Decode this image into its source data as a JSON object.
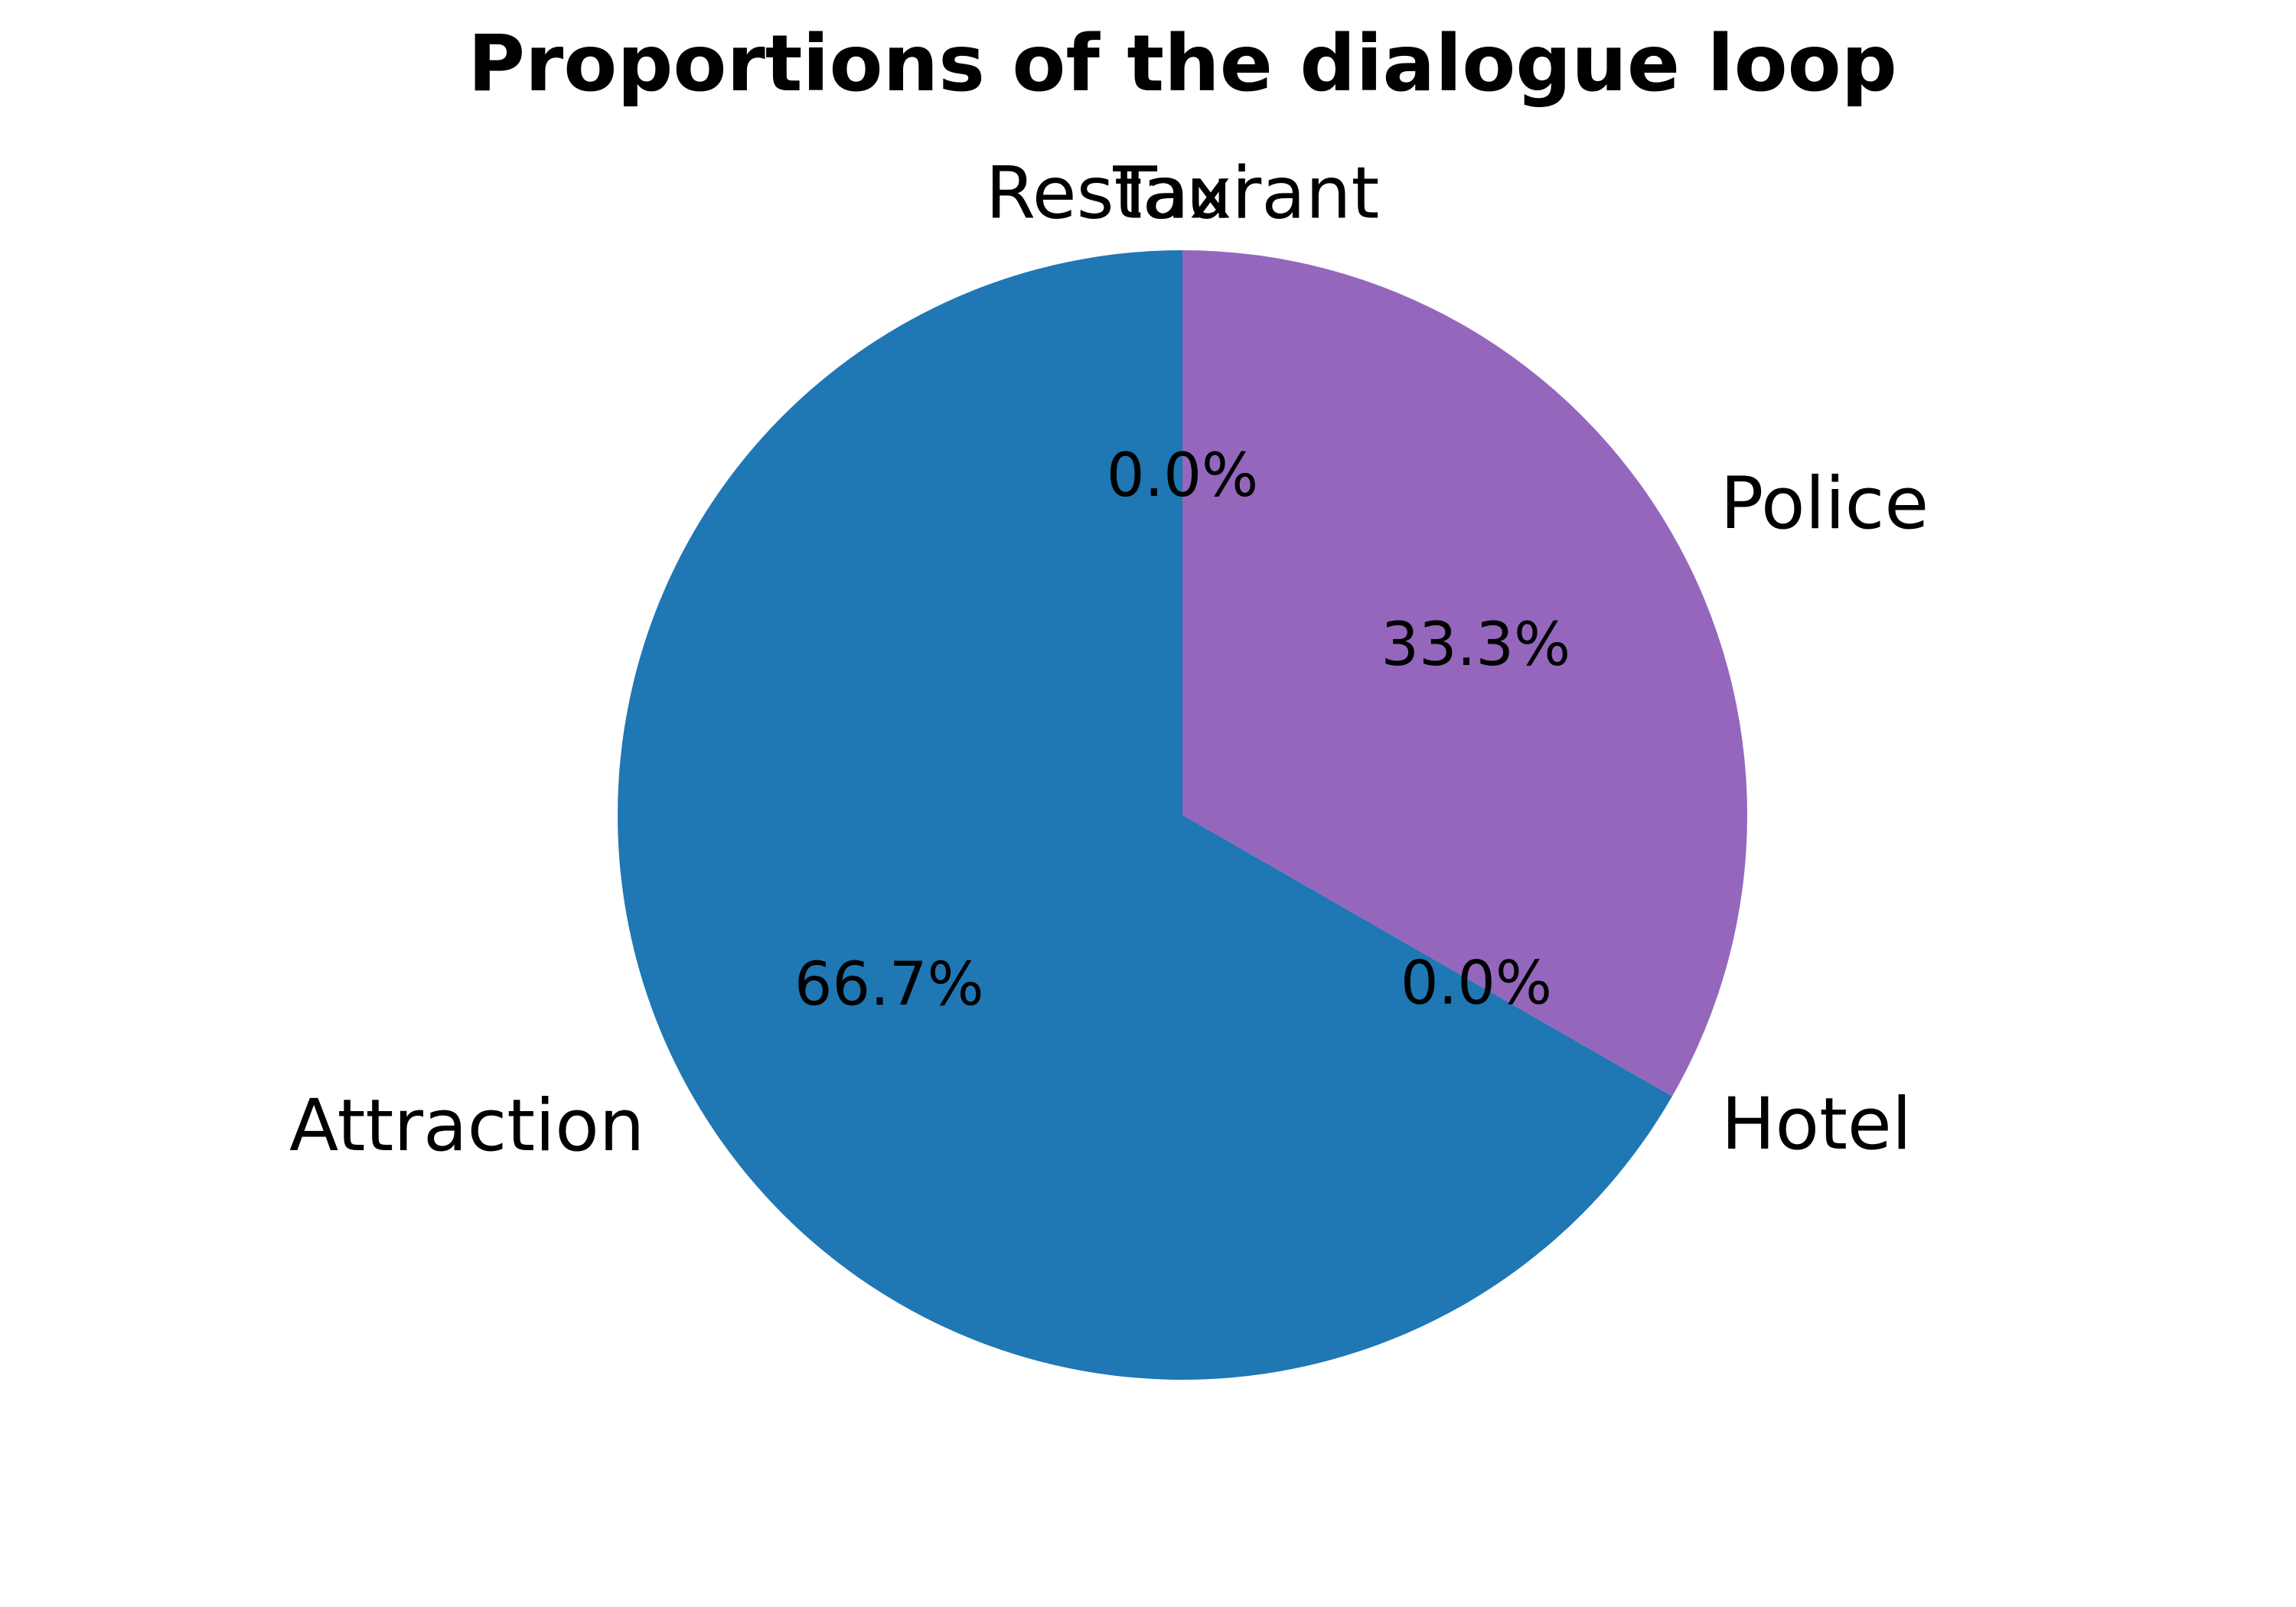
{
  "chart_data": {
    "type": "pie",
    "title": "Proportions of the dialogue loop",
    "labels": [
      "Attraction",
      "Hotel",
      "Police",
      "Restaurant",
      "Taxi"
    ],
    "values": [
      66.7,
      0.0,
      33.3,
      0.0,
      0.0
    ],
    "pct_labels": [
      "66.7%",
      "0.0%",
      "33.3%",
      "0.0%",
      "0.0%"
    ],
    "colors": [
      "#1f77b4",
      "#ff7f0e",
      "#9467bd",
      "#d62728",
      "#2ca02c"
    ],
    "start_angle_deg": 90,
    "direction": "counterclockwise",
    "legend": "none"
  }
}
